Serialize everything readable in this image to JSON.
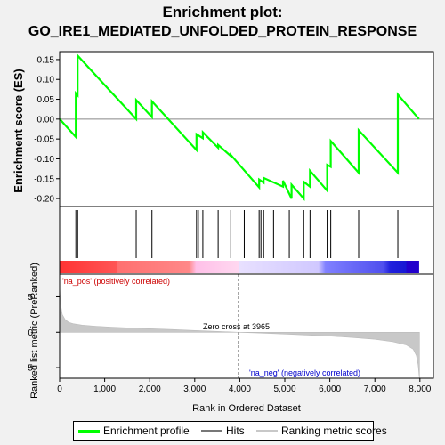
{
  "title_line1": "Enrichment plot:",
  "title_line2": "GO_IRE1_MEDIATED_UNFOLDED_PROTEIN_RESPONSE",
  "colors": {
    "es_line": "#00ff00",
    "hits": "#000000",
    "ranking": "#c8c8c8",
    "pos_label": "#cc0000",
    "neg_label": "#0000cc"
  },
  "chart_data": [
    {
      "type": "line",
      "name": "enrichment-profile",
      "xlim": [
        0,
        8300
      ],
      "ylim": [
        -0.22,
        0.17
      ],
      "ylabel": "Enrichment score (ES)",
      "yticks": [
        0.15,
        0.1,
        0.05,
        0.0,
        -0.05,
        -0.1,
        -0.15,
        -0.2
      ],
      "ytick_labels": [
        "0.15",
        "0.10",
        "0.05",
        "0.00",
        "-0.05",
        "-0.10",
        "-0.15",
        "-0.20"
      ],
      "series": [
        {
          "x": [
            0,
            360,
            360,
            400,
            400,
            1700,
            1700,
            2050,
            2050,
            3040,
            3040,
            3180,
            3180,
            3520,
            3520,
            3800,
            3800,
            4430,
            4430,
            4530,
            4530,
            4960,
            4960,
            5150,
            5150,
            5420,
            5420,
            5560,
            5560,
            5940,
            5940,
            6020,
            6020,
            6640,
            6640,
            7510,
            7510,
            7980
          ],
          "y": [
            0.0,
            -0.045,
            0.065,
            0.06,
            0.16,
            0.0,
            0.048,
            0.005,
            0.045,
            -0.078,
            -0.038,
            -0.048,
            -0.033,
            -0.072,
            -0.065,
            -0.093,
            -0.09,
            -0.172,
            -0.152,
            -0.16,
            -0.148,
            -0.17,
            -0.155,
            -0.2,
            -0.165,
            -0.2,
            -0.158,
            -0.17,
            -0.13,
            -0.18,
            -0.115,
            -0.12,
            -0.055,
            -0.135,
            -0.028,
            -0.135,
            0.062,
            0.0
          ]
        }
      ]
    },
    {
      "type": "hits",
      "name": "hits",
      "positions": [
        360,
        400,
        1700,
        2050,
        3040,
        3080,
        3180,
        3520,
        3800,
        4100,
        4430,
        4470,
        4530,
        4750,
        5100,
        5420,
        5560,
        5940,
        6020,
        6640,
        7510
      ]
    },
    {
      "type": "area",
      "name": "ranking-metric",
      "ylabel": "Ranked list metric (PreRanked)",
      "xlabel": "Rank in Ordered Dataset",
      "xlim": [
        0,
        8300
      ],
      "ylim": [
        -6.5,
        8.2
      ],
      "xticks": [
        0,
        1000,
        2000,
        3000,
        4000,
        5000,
        6000,
        7000,
        8000
      ],
      "xtick_labels": [
        "0",
        "1,000",
        "2,000",
        "3,000",
        "4,000",
        "5,000",
        "6,000",
        "7,000",
        "8,000"
      ],
      "yticks": [
        5,
        0,
        -5
      ],
      "ytick_labels": [
        "5",
        "0",
        "-5"
      ],
      "x": [
        0,
        20,
        60,
        120,
        200,
        300,
        500,
        800,
        1200,
        1600,
        2000,
        2500,
        3000,
        3500,
        3965,
        4400,
        5000,
        5500,
        6000,
        6500,
        7000,
        7400,
        7700,
        7850,
        7920,
        7960,
        7990
      ],
      "y": [
        6.6,
        4.0,
        2.5,
        1.8,
        1.4,
        1.2,
        1.0,
        0.85,
        0.7,
        0.6,
        0.5,
        0.38,
        0.25,
        0.12,
        0.0,
        -0.1,
        -0.25,
        -0.4,
        -0.55,
        -0.75,
        -1.0,
        -1.35,
        -1.8,
        -2.4,
        -3.3,
        -4.6,
        -6.6
      ],
      "zero_cross_label": "Zero cross at 3965",
      "zero_cross": 3965,
      "pos_label": "'na_pos' (positively correlated)",
      "neg_label": "'na_neg' (negatively correlated)"
    }
  ],
  "legend": {
    "items": [
      {
        "label": "Enrichment profile"
      },
      {
        "label": "Hits"
      },
      {
        "label": "Ranking metric scores"
      }
    ]
  }
}
